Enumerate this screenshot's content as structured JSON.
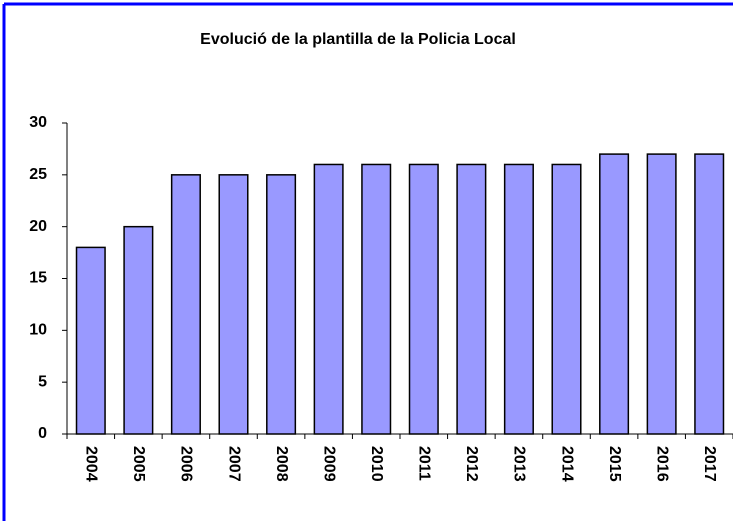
{
  "chart_data": {
    "type": "bar",
    "title": "Evolució de la plantilla de la Policia Local",
    "categories": [
      "2004",
      "2005",
      "2006",
      "2007",
      "2008",
      "2009",
      "2010",
      "2011",
      "2012",
      "2013",
      "2014",
      "2015",
      "2016",
      "2017"
    ],
    "values": [
      18,
      20,
      25,
      25,
      25,
      26,
      26,
      26,
      26,
      26,
      26,
      27,
      27,
      27
    ],
    "color": "#9999ff",
    "ylim": [
      0,
      30
    ],
    "yticks": [
      0,
      5,
      10,
      15,
      20,
      25,
      30
    ],
    "grid": false
  }
}
